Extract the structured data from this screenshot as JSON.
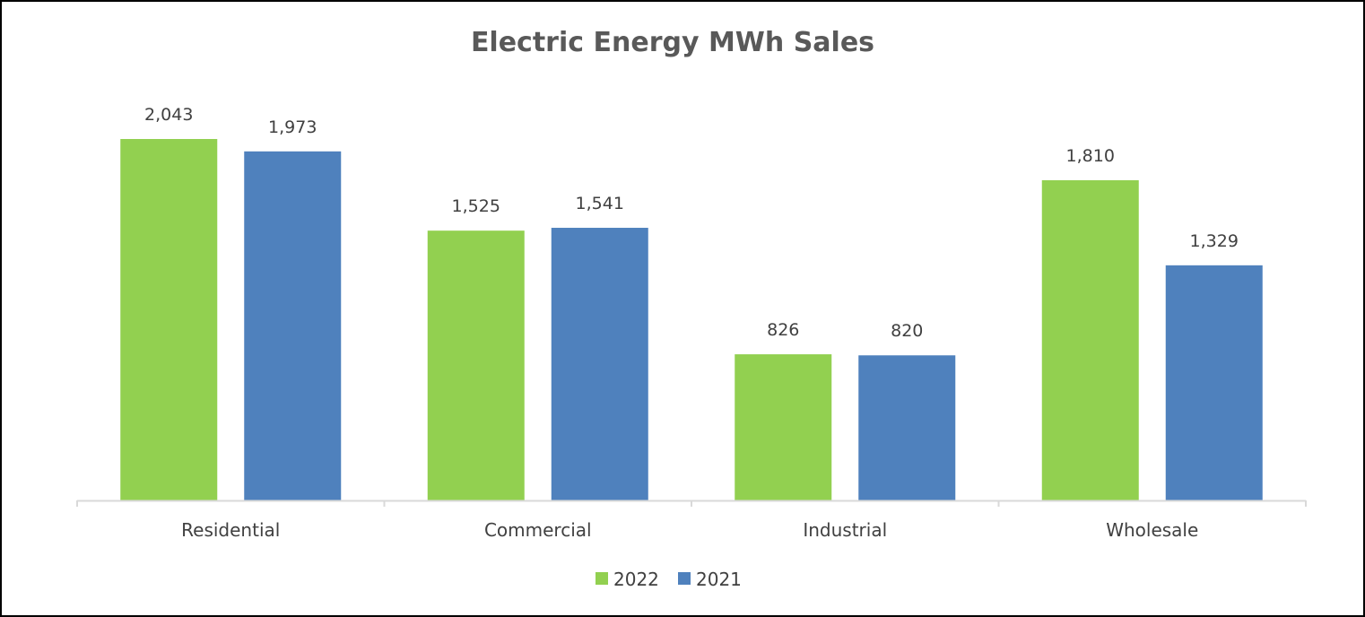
{
  "chart_data": {
    "type": "bar",
    "title": "Electric Energy MWh Sales",
    "categories": [
      "Residential",
      "Commercial",
      "Industrial",
      "Wholesale"
    ],
    "series": [
      {
        "name": "2022",
        "color": "#92D050",
        "values": [
          2043,
          1525,
          826,
          1810
        ]
      },
      {
        "name": "2021",
        "color": "#4F81BD",
        "values": [
          1973,
          1541,
          820,
          1329
        ]
      }
    ],
    "data_labels": [
      [
        "2,043",
        "1,525",
        "826",
        "1,810"
      ],
      [
        "1,973",
        "1,541",
        "820",
        "1,329"
      ]
    ],
    "xlabel": "",
    "ylabel": "",
    "ylim": [
      0,
      2043
    ],
    "grid": false,
    "legend": "bottom-center"
  }
}
